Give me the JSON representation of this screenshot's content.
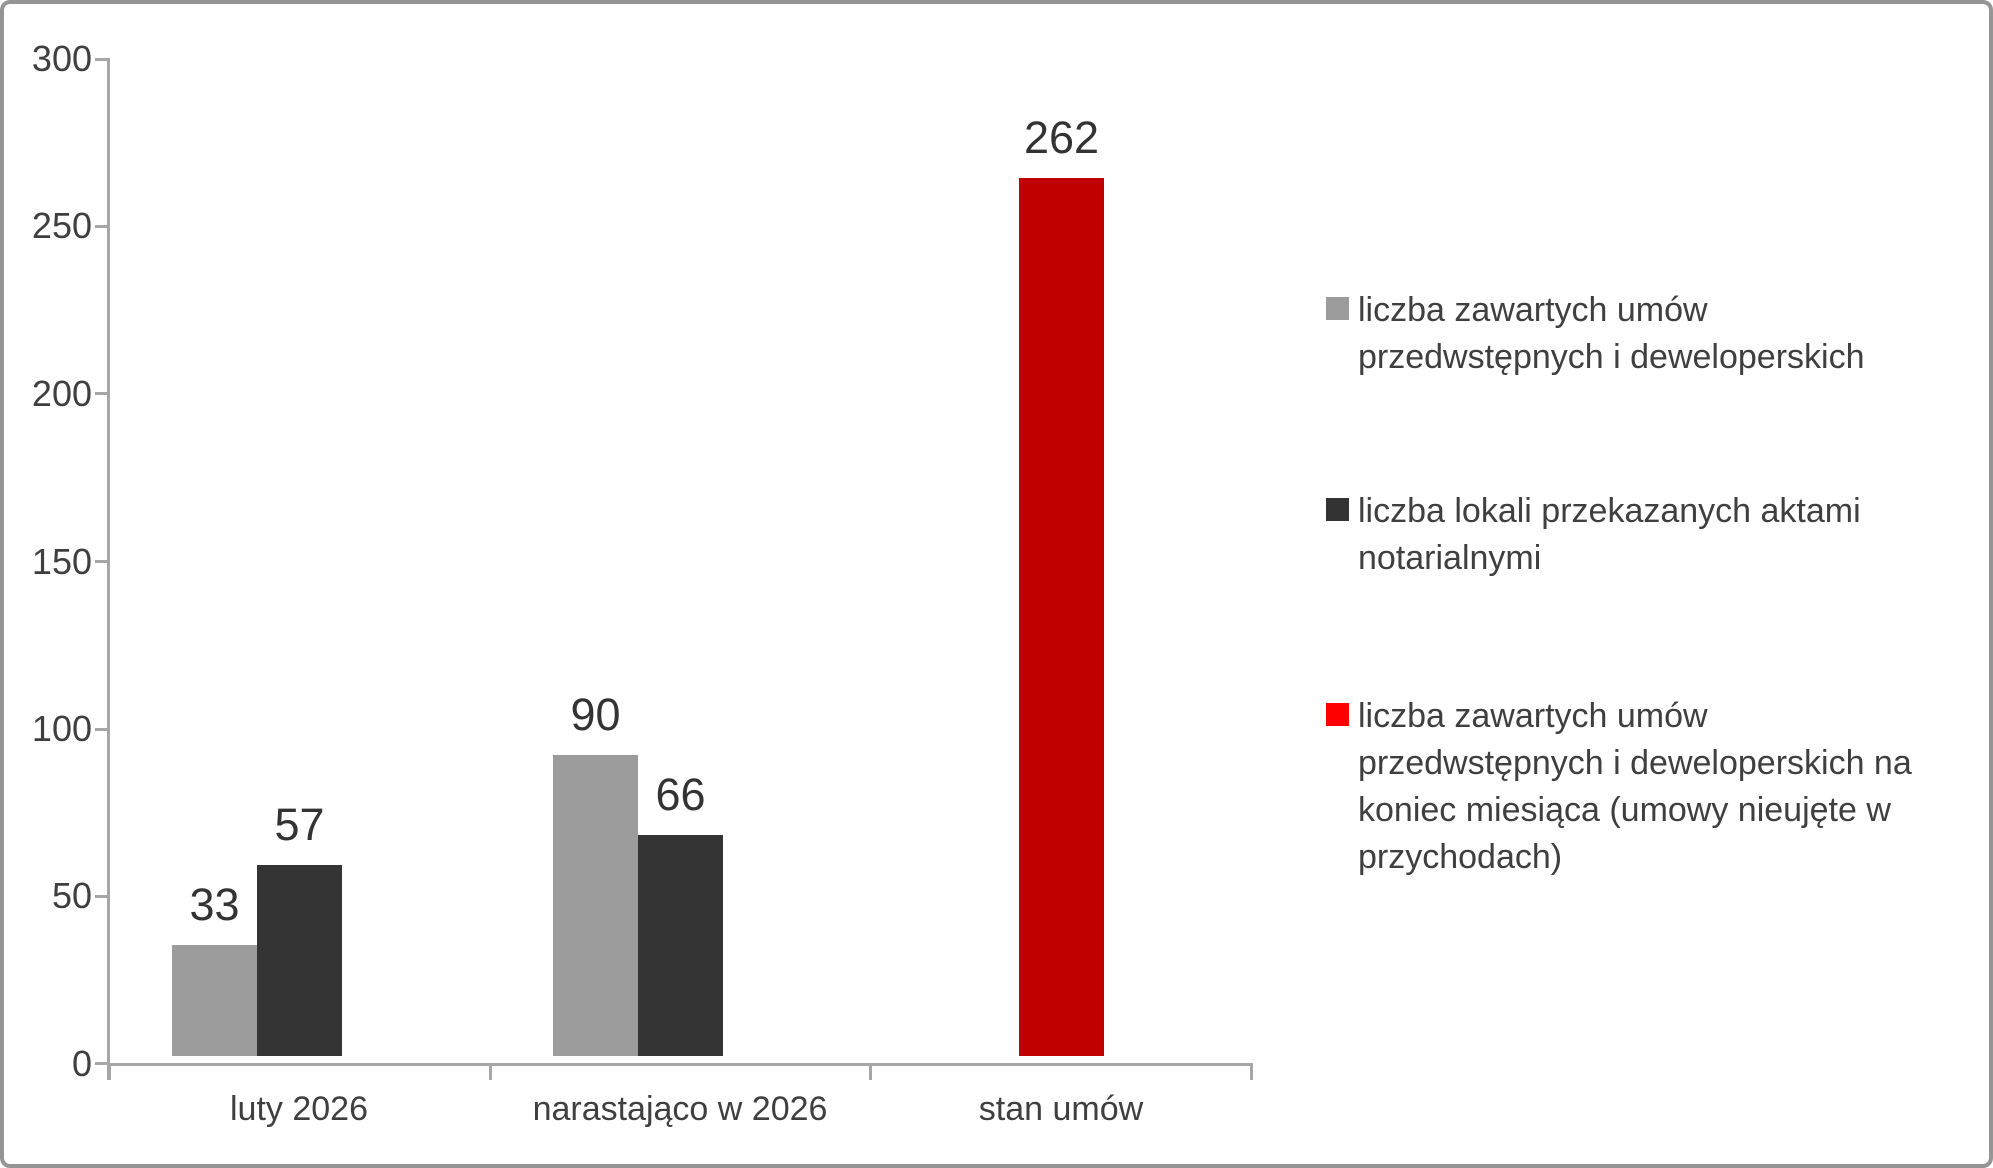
{
  "chart_data": {
    "type": "bar",
    "title": "",
    "categories": [
      "luty 2026",
      "narastająco w 2026",
      "stan umów"
    ],
    "y_axis": {
      "min": 0,
      "max": 300,
      "step": 50,
      "ticks": [
        0,
        50,
        100,
        150,
        200,
        250,
        300
      ]
    },
    "grid": false,
    "legend_position": "right",
    "data_labels": true,
    "series": [
      {
        "name": "liczba zawartych umów przedwstępnych i deweloperskich",
        "color": "#9C9C9C",
        "values": [
          33,
          90,
          null
        ]
      },
      {
        "name": "liczba lokali przekazanych aktami notarialnymi",
        "color": "#343434",
        "values": [
          57,
          66,
          null
        ]
      },
      {
        "name": "liczba zawartych umów przedwstępnych i deweloperskich na koniec miesiąca (umowy nieujęte w przychodach)",
        "color": "#C00000",
        "values": [
          null,
          null,
          262
        ]
      }
    ]
  },
  "legend": {
    "entries": [
      {
        "label": "liczba zawartych umów przedwstępnych i deweloperskich",
        "marker_color": "#9C9C9C"
      },
      {
        "label": "liczba lokali przekazanych aktami notarialnymi",
        "marker_color": "#333333"
      },
      {
        "label": "liczba zawartych umów przedwstępnych i deweloperskich na koniec miesiąca (umowy nieujęte w przychodach)",
        "marker_color": "#FF0000"
      }
    ]
  },
  "colors": {
    "bar_gray": "#9C9C9C",
    "bar_dark": "#343434",
    "bar_red": "#C00000",
    "legend_red": "#FF0000",
    "axis": "#A6A6A6",
    "text": "#3F3F3F",
    "frame_border": "#959595",
    "background": "#FFFFFF"
  }
}
